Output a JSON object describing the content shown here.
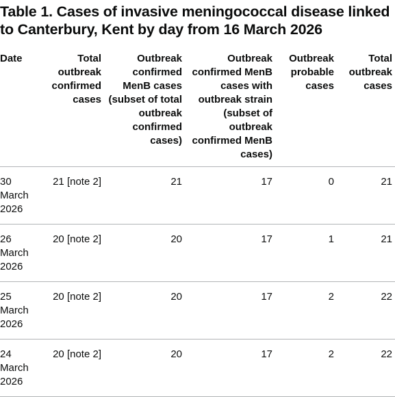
{
  "title": "Table 1. Cases of invasive meningococcal disease linked to Canterbury, Kent by day from 16 March 2026",
  "table": {
    "headers": [
      "Date",
      "Total outbreak confirmed cases",
      "Outbreak confirmed MenB cases (subset of total outbreak confirmed cases)",
      "Outbreak confirmed MenB cases with outbreak strain (subset of outbreak confirmed MenB cases)",
      "Outbreak probable cases",
      "Total outbreak cases"
    ],
    "rows": [
      [
        "30 March 2026",
        "21 [note 2]",
        "21",
        "17",
        "0",
        "21"
      ],
      [
        "26 March 2026",
        "20 [note 2]",
        "20",
        "17",
        "1",
        "21"
      ],
      [
        "25 March 2026",
        "20 [note 2]",
        "20",
        "17",
        "2",
        "22"
      ],
      [
        "24 March 2026",
        "20 [note 2]",
        "20",
        "17",
        "2",
        "22"
      ]
    ]
  }
}
